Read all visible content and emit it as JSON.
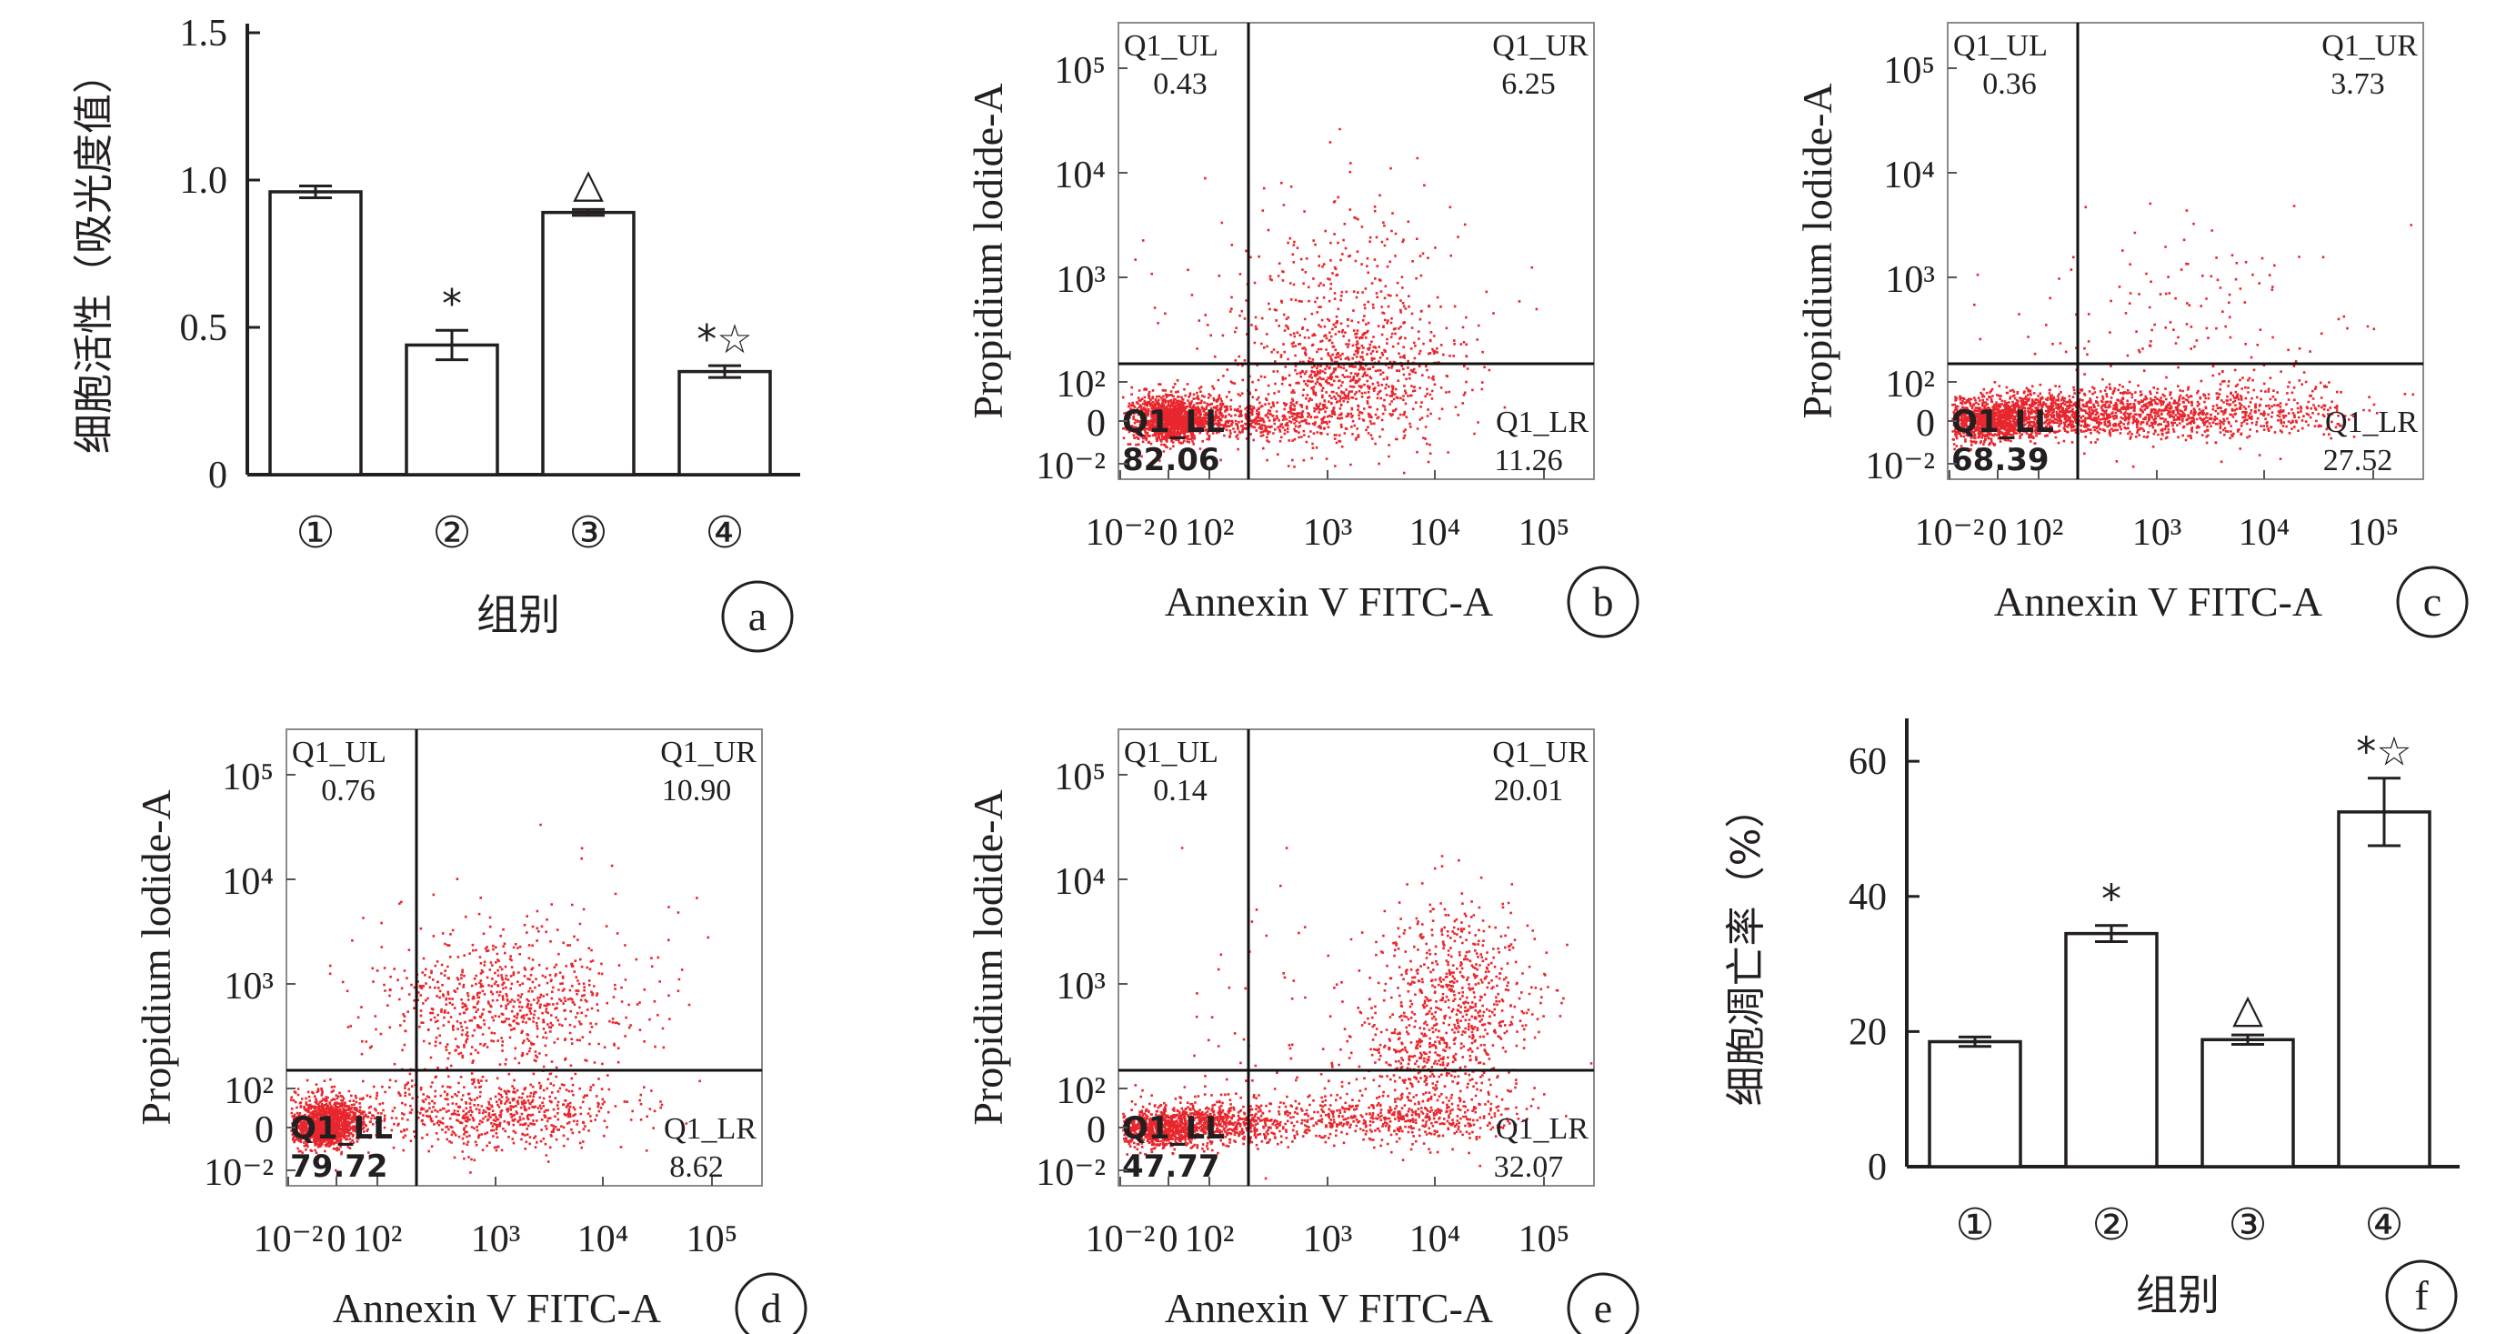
{
  "colors": {
    "ink": "#231f20",
    "dots": "#e8262d",
    "background": "#ffffff"
  },
  "chart_data": [
    {
      "panel": "a",
      "type": "bar",
      "categories": [
        "①",
        "②",
        "③",
        "④"
      ],
      "values": [
        0.96,
        0.44,
        0.89,
        0.35
      ],
      "errors": [
        0.02,
        0.05,
        0.01,
        0.02
      ],
      "markers": [
        "",
        "*",
        "△",
        "*☆"
      ],
      "ylabel": "细胞活性（吸光度值）",
      "xlabel": "组别",
      "ylim": [
        0,
        1.5
      ],
      "yticks": [
        "0",
        "0.5",
        "1.0",
        "1.5"
      ],
      "panel_label": "a"
    },
    {
      "panel": "b",
      "type": "scatter",
      "xlabel": "Annexin V FITC-A",
      "ylabel": "Propidium lodide-A",
      "xticks": [
        "10⁻²",
        "0",
        "10²",
        "10³",
        "10⁴",
        "10⁵"
      ],
      "yticks": [
        "10⁵",
        "10⁴",
        "10³",
        "10²",
        "0",
        "10⁻²"
      ],
      "quadrants": [
        {
          "name": "Q1_UL",
          "value": "0.43"
        },
        {
          "name": "Q1_UR",
          "value": "6.25"
        },
        {
          "name": "Q1_LL",
          "value": "82.06"
        },
        {
          "name": "Q1_LR",
          "value": "11.26"
        }
      ],
      "panel_label": "b"
    },
    {
      "panel": "c",
      "type": "scatter",
      "xlabel": "Annexin V FITC-A",
      "ylabel": "Propidium lodide-A",
      "xticks": [
        "10⁻²",
        "0",
        "10²",
        "10³",
        "10⁴",
        "10⁵"
      ],
      "yticks": [
        "10⁵",
        "10⁴",
        "10³",
        "10²",
        "0",
        "10⁻²"
      ],
      "quadrants": [
        {
          "name": "Q1_UL",
          "value": "0.36"
        },
        {
          "name": "Q1_UR",
          "value": "3.73"
        },
        {
          "name": "Q1_LL",
          "value": "68.39"
        },
        {
          "name": "Q1_LR",
          "value": "27.52"
        }
      ],
      "panel_label": "c"
    },
    {
      "panel": "d",
      "type": "scatter",
      "xlabel": "Annexin V FITC-A",
      "ylabel": "Propidium lodide-A",
      "xticks": [
        "10⁻²",
        "0",
        "10²",
        "10³",
        "10⁴",
        "10⁵"
      ],
      "yticks": [
        "10⁵",
        "10⁴",
        "10³",
        "10²",
        "0",
        "10⁻²"
      ],
      "quadrants": [
        {
          "name": "Q1_UL",
          "value": "0.76"
        },
        {
          "name": "Q1_UR",
          "value": "10.90"
        },
        {
          "name": "Q1_LL",
          "value": "79.72"
        },
        {
          "name": "Q1_LR",
          "value": "8.62"
        }
      ],
      "panel_label": "d"
    },
    {
      "panel": "e",
      "type": "scatter",
      "xlabel": "Annexin V FITC-A",
      "ylabel": "Propidium lodide-A",
      "xticks": [
        "10⁻²",
        "0",
        "10²",
        "10³",
        "10⁴",
        "10⁵"
      ],
      "yticks": [
        "10⁵",
        "10⁴",
        "10³",
        "10²",
        "0",
        "10⁻²"
      ],
      "quadrants": [
        {
          "name": "Q1_UL",
          "value": "0.14"
        },
        {
          "name": "Q1_UR",
          "value": "20.01"
        },
        {
          "name": "Q1_LL",
          "value": "47.77"
        },
        {
          "name": "Q1_LR",
          "value": "32.07"
        }
      ],
      "panel_label": "e"
    },
    {
      "panel": "f",
      "type": "bar",
      "categories": [
        "①",
        "②",
        "③",
        "④"
      ],
      "values": [
        18.5,
        34.5,
        18.8,
        52.5
      ],
      "errors": [
        0.7,
        1.2,
        0.7,
        5.0
      ],
      "markers": [
        "",
        "*",
        "△",
        "*☆"
      ],
      "ylabel": "细胞凋亡率（%）",
      "xlabel": "组别",
      "ylim": [
        0,
        65
      ],
      "yticks": [
        "0",
        "20",
        "40",
        "60"
      ],
      "panel_label": "f"
    }
  ]
}
